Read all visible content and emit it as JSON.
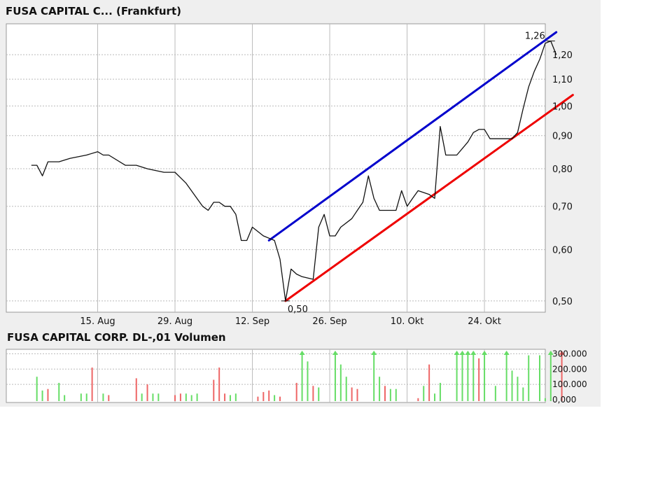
{
  "price_title": "FUSA CAPITAL C... (Frankfurt)",
  "volume_title": "FUSA CAPITAL CORP. DL-,01 Volumen",
  "colors": {
    "price_line": "#111111",
    "upper_channel": "#0000cc",
    "lower_channel": "#ee0000",
    "volume_up": "#66dd66",
    "volume_down": "#ee6666",
    "grid": "#bbbbbb",
    "plot_bg": "#ffffff",
    "panel_bg": "#efefef"
  },
  "chart_data": [
    {
      "type": "line",
      "title": "FUSA CAPITAL C... (Frankfurt)",
      "y_scale": "log",
      "grid": true,
      "x_ticks": [
        "15. Aug",
        "29. Aug",
        "12. Sep",
        "26. Sep",
        "10. Okt",
        "24. Okt"
      ],
      "x_tick_dates": [
        "2007-08-15",
        "2007-08-29",
        "2007-09-12",
        "2007-09-26",
        "2007-10-10",
        "2007-10-24"
      ],
      "x_range": [
        "2007-08-01",
        "2007-11-03"
      ],
      "y_ticks": [
        "0,50",
        "0,60",
        "0,70",
        "0,80",
        "0,90",
        "1,00",
        "1,10",
        "1,20"
      ],
      "y_tick_values": [
        0.5,
        0.6,
        0.7,
        0.8,
        0.9,
        1.0,
        1.1,
        1.2
      ],
      "ylim": [
        0.49,
        1.3
      ],
      "series": [
        {
          "points": [
            [
              "2007-08-03",
              0.81
            ],
            [
              "2007-08-04",
              0.81
            ],
            [
              "2007-08-05",
              0.78
            ],
            [
              "2007-08-06",
              0.82
            ],
            [
              "2007-08-08",
              0.82
            ],
            [
              "2007-08-10",
              0.83
            ],
            [
              "2007-08-13",
              0.84
            ],
            [
              "2007-08-15",
              0.85
            ],
            [
              "2007-08-16",
              0.84
            ],
            [
              "2007-08-17",
              0.84
            ],
            [
              "2007-08-20",
              0.81
            ],
            [
              "2007-08-22",
              0.81
            ],
            [
              "2007-08-24",
              0.8
            ],
            [
              "2007-08-27",
              0.79
            ],
            [
              "2007-08-29",
              0.79
            ],
            [
              "2007-08-31",
              0.76
            ],
            [
              "2007-09-03",
              0.7
            ],
            [
              "2007-09-04",
              0.69
            ],
            [
              "2007-09-05",
              0.71
            ],
            [
              "2007-09-06",
              0.71
            ],
            [
              "2007-09-07",
              0.7
            ],
            [
              "2007-09-08",
              0.7
            ],
            [
              "2007-09-09",
              0.68
            ],
            [
              "2007-09-10",
              0.62
            ],
            [
              "2007-09-11",
              0.62
            ],
            [
              "2007-09-12",
              0.65
            ],
            [
              "2007-09-14",
              0.63
            ],
            [
              "2007-09-16",
              0.62
            ],
            [
              "2007-09-17",
              0.58
            ],
            [
              "2007-09-18",
              0.5
            ],
            [
              "2007-09-19",
              0.56
            ],
            [
              "2007-09-20",
              0.55
            ],
            [
              "2007-09-21",
              0.545
            ],
            [
              "2007-09-23",
              0.54
            ],
            [
              "2007-09-24",
              0.65
            ],
            [
              "2007-09-25",
              0.68
            ],
            [
              "2007-09-26",
              0.63
            ],
            [
              "2007-09-27",
              0.63
            ],
            [
              "2007-09-28",
              0.65
            ],
            [
              "2007-09-30",
              0.67
            ],
            [
              "2007-10-01",
              0.69
            ],
            [
              "2007-10-02",
              0.71
            ],
            [
              "2007-10-03",
              0.78
            ],
            [
              "2007-10-04",
              0.72
            ],
            [
              "2007-10-05",
              0.69
            ],
            [
              "2007-10-06",
              0.69
            ],
            [
              "2007-10-08",
              0.69
            ],
            [
              "2007-10-09",
              0.74
            ],
            [
              "2007-10-10",
              0.7
            ],
            [
              "2007-10-11",
              0.72
            ],
            [
              "2007-10-12",
              0.74
            ],
            [
              "2007-10-14",
              0.73
            ],
            [
              "2007-10-15",
              0.72
            ],
            [
              "2007-10-16",
              0.93
            ],
            [
              "2007-10-17",
              0.84
            ],
            [
              "2007-10-18",
              0.84
            ],
            [
              "2007-10-19",
              0.84
            ],
            [
              "2007-10-21",
              0.88
            ],
            [
              "2007-10-22",
              0.91
            ],
            [
              "2007-10-23",
              0.92
            ],
            [
              "2007-10-24",
              0.92
            ],
            [
              "2007-10-25",
              0.89
            ],
            [
              "2007-10-26",
              0.89
            ],
            [
              "2007-10-27",
              0.89
            ],
            [
              "2007-10-28",
              0.89
            ],
            [
              "2007-10-29",
              0.89
            ],
            [
              "2007-10-30",
              0.91
            ],
            [
              "2007-10-31",
              0.99
            ],
            [
              "2007-11-01",
              1.07
            ],
            [
              "2007-11-02",
              1.13
            ],
            [
              "2007-11-03",
              1.18
            ],
            [
              "2007-11-04",
              1.25
            ],
            [
              "2007-11-05",
              1.26
            ],
            [
              "2007-11-06",
              1.2
            ]
          ]
        }
      ],
      "trendlines": [
        {
          "color": "#0000cc",
          "from": [
            "2007-09-15",
            0.62
          ],
          "to": [
            "2007-11-06",
            1.3
          ]
        },
        {
          "color": "#ee0000",
          "from": [
            "2007-09-18",
            0.5
          ],
          "to": [
            "2007-11-09",
            1.04
          ]
        }
      ],
      "annotations": [
        {
          "text": "0,50",
          "date": "2007-09-18",
          "value": 0.5
        },
        {
          "text": "1,26",
          "date": "2007-11-05",
          "value": 1.26
        }
      ]
    },
    {
      "type": "bar",
      "title": "FUSA CAPITAL CORP. DL-,01 Volumen",
      "grid": true,
      "y_ticks": [
        "0,000",
        "100.000",
        "200.000",
        "300.000"
      ],
      "y_tick_values": [
        0,
        100000,
        200000,
        300000
      ],
      "ylim": [
        0,
        320000
      ],
      "capped_values_marked_with_arrow": true,
      "bars": [
        {
          "date": "2007-08-04",
          "value": 150000,
          "dir": "up"
        },
        {
          "date": "2007-08-05",
          "value": 60000,
          "dir": "up"
        },
        {
          "date": "2007-08-06",
          "value": 70000,
          "dir": "down"
        },
        {
          "date": "2007-08-08",
          "value": 110000,
          "dir": "up"
        },
        {
          "date": "2007-08-09",
          "value": 30000,
          "dir": "up"
        },
        {
          "date": "2007-08-12",
          "value": 40000,
          "dir": "up"
        },
        {
          "date": "2007-08-13",
          "value": 40000,
          "dir": "up"
        },
        {
          "date": "2007-08-14",
          "value": 210000,
          "dir": "down"
        },
        {
          "date": "2007-08-16",
          "value": 40000,
          "dir": "up"
        },
        {
          "date": "2007-08-17",
          "value": 30000,
          "dir": "down"
        },
        {
          "date": "2007-08-22",
          "value": 140000,
          "dir": "down"
        },
        {
          "date": "2007-08-23",
          "value": 40000,
          "dir": "up"
        },
        {
          "date": "2007-08-24",
          "value": 100000,
          "dir": "down"
        },
        {
          "date": "2007-08-25",
          "value": 40000,
          "dir": "up"
        },
        {
          "date": "2007-08-26",
          "value": 40000,
          "dir": "up"
        },
        {
          "date": "2007-08-29",
          "value": 30000,
          "dir": "down"
        },
        {
          "date": "2007-08-30",
          "value": 40000,
          "dir": "down"
        },
        {
          "date": "2007-08-31",
          "value": 40000,
          "dir": "up"
        },
        {
          "date": "2007-09-01",
          "value": 30000,
          "dir": "up"
        },
        {
          "date": "2007-09-02",
          "value": 40000,
          "dir": "up"
        },
        {
          "date": "2007-09-05",
          "value": 130000,
          "dir": "down"
        },
        {
          "date": "2007-09-06",
          "value": 210000,
          "dir": "down"
        },
        {
          "date": "2007-09-07",
          "value": 40000,
          "dir": "down"
        },
        {
          "date": "2007-09-08",
          "value": 30000,
          "dir": "up"
        },
        {
          "date": "2007-09-09",
          "value": 40000,
          "dir": "up"
        },
        {
          "date": "2007-09-13",
          "value": 20000,
          "dir": "down"
        },
        {
          "date": "2007-09-14",
          "value": 50000,
          "dir": "down"
        },
        {
          "date": "2007-09-15",
          "value": 60000,
          "dir": "down"
        },
        {
          "date": "2007-09-16",
          "value": 30000,
          "dir": "up"
        },
        {
          "date": "2007-09-17",
          "value": 20000,
          "dir": "down"
        },
        {
          "date": "2007-09-20",
          "value": 110000,
          "dir": "down"
        },
        {
          "date": "2007-09-21",
          "value": 320000,
          "dir": "up"
        },
        {
          "date": "2007-09-22",
          "value": 250000,
          "dir": "up"
        },
        {
          "date": "2007-09-23",
          "value": 90000,
          "dir": "down"
        },
        {
          "date": "2007-09-24",
          "value": 80000,
          "dir": "up"
        },
        {
          "date": "2007-09-27",
          "value": 320000,
          "dir": "up"
        },
        {
          "date": "2007-09-28",
          "value": 230000,
          "dir": "up"
        },
        {
          "date": "2007-09-29",
          "value": 150000,
          "dir": "up"
        },
        {
          "date": "2007-09-30",
          "value": 80000,
          "dir": "down"
        },
        {
          "date": "2007-10-01",
          "value": 70000,
          "dir": "down"
        },
        {
          "date": "2007-10-04",
          "value": 320000,
          "dir": "up"
        },
        {
          "date": "2007-10-05",
          "value": 150000,
          "dir": "up"
        },
        {
          "date": "2007-10-06",
          "value": 90000,
          "dir": "down"
        },
        {
          "date": "2007-10-07",
          "value": 70000,
          "dir": "up"
        },
        {
          "date": "2007-10-08",
          "value": 70000,
          "dir": "up"
        },
        {
          "date": "2007-10-12",
          "value": 10000,
          "dir": "down"
        },
        {
          "date": "2007-10-13",
          "value": 90000,
          "dir": "up"
        },
        {
          "date": "2007-10-14",
          "value": 230000,
          "dir": "down"
        },
        {
          "date": "2007-10-15",
          "value": 40000,
          "dir": "up"
        },
        {
          "date": "2007-10-16",
          "value": 110000,
          "dir": "up"
        },
        {
          "date": "2007-10-19",
          "value": 320000,
          "dir": "up"
        },
        {
          "date": "2007-10-20",
          "value": 320000,
          "dir": "up"
        },
        {
          "date": "2007-10-21",
          "value": 320000,
          "dir": "up"
        },
        {
          "date": "2007-10-22",
          "value": 320000,
          "dir": "up"
        },
        {
          "date": "2007-10-23",
          "value": 270000,
          "dir": "down"
        },
        {
          "date": "2007-10-24",
          "value": 320000,
          "dir": "up"
        },
        {
          "date": "2007-10-26",
          "value": 90000,
          "dir": "up"
        },
        {
          "date": "2007-10-28",
          "value": 320000,
          "dir": "up"
        },
        {
          "date": "2007-10-29",
          "value": 190000,
          "dir": "up"
        },
        {
          "date": "2007-10-30",
          "value": 150000,
          "dir": "up"
        },
        {
          "date": "2007-10-31",
          "value": 80000,
          "dir": "up"
        },
        {
          "date": "2007-11-01",
          "value": 290000,
          "dir": "up"
        },
        {
          "date": "2007-11-03",
          "value": 290000,
          "dir": "up"
        },
        {
          "date": "2007-11-04",
          "value": 10000,
          "dir": "up"
        },
        {
          "date": "2007-11-05",
          "value": 320000,
          "dir": "up"
        },
        {
          "date": "2007-11-07",
          "value": 320000,
          "dir": "down"
        }
      ]
    }
  ]
}
